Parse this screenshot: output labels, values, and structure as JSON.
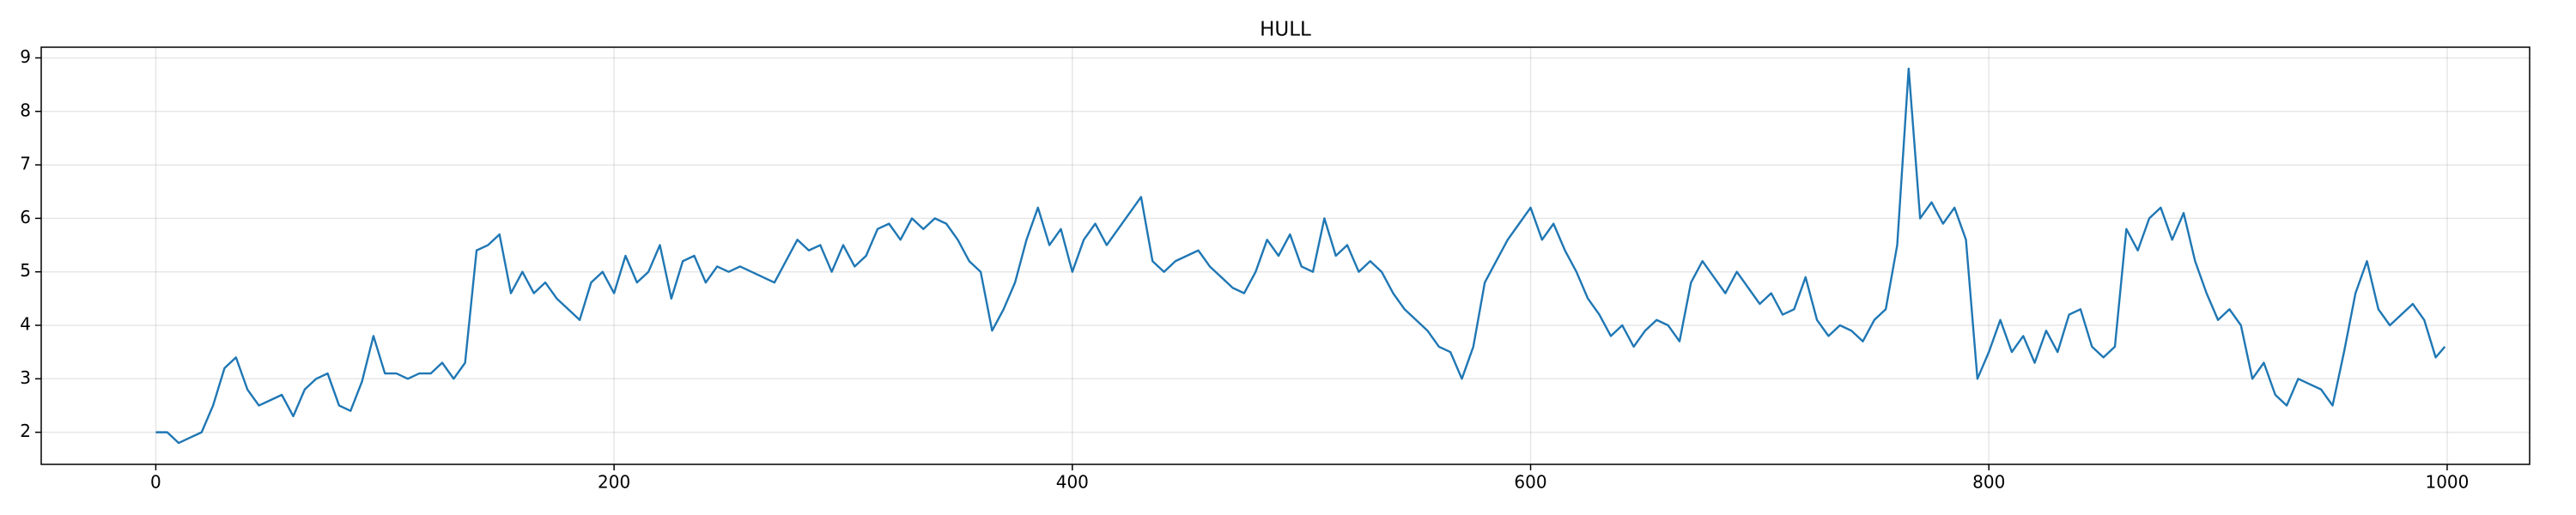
{
  "chart_data": {
    "type": "line",
    "title": "HULL",
    "x": [
      0,
      5,
      10,
      15,
      20,
      25,
      30,
      35,
      40,
      45,
      50,
      55,
      60,
      65,
      70,
      75,
      80,
      85,
      90,
      95,
      100,
      105,
      110,
      115,
      120,
      125,
      130,
      135,
      140,
      145,
      150,
      155,
      160,
      165,
      170,
      175,
      180,
      185,
      190,
      195,
      200,
      205,
      210,
      215,
      220,
      225,
      230,
      235,
      240,
      245,
      250,
      255,
      260,
      265,
      270,
      275,
      280,
      285,
      290,
      295,
      300,
      305,
      310,
      315,
      320,
      325,
      330,
      335,
      340,
      345,
      350,
      355,
      360,
      365,
      370,
      375,
      380,
      385,
      390,
      395,
      400,
      405,
      410,
      415,
      420,
      425,
      430,
      435,
      440,
      445,
      450,
      455,
      460,
      465,
      470,
      475,
      480,
      485,
      490,
      495,
      500,
      505,
      510,
      515,
      520,
      525,
      530,
      535,
      540,
      545,
      550,
      555,
      560,
      565,
      570,
      575,
      580,
      585,
      590,
      595,
      600,
      605,
      610,
      615,
      620,
      625,
      630,
      635,
      640,
      645,
      650,
      655,
      660,
      665,
      670,
      675,
      680,
      685,
      690,
      695,
      700,
      705,
      710,
      715,
      720,
      725,
      730,
      735,
      740,
      745,
      750,
      755,
      760,
      765,
      770,
      775,
      780,
      785,
      790,
      795,
      800,
      805,
      810,
      815,
      820,
      825,
      830,
      835,
      840,
      845,
      850,
      855,
      860,
      865,
      870,
      875,
      880,
      885,
      890,
      895,
      900,
      905,
      910,
      915,
      920,
      925,
      930,
      935,
      940,
      945,
      950,
      955,
      960,
      965,
      970,
      975,
      980,
      985,
      990,
      995,
      999
    ],
    "values": [
      2.0,
      2.0,
      1.8,
      1.9,
      2.0,
      2.5,
      3.2,
      3.4,
      2.8,
      2.5,
      2.6,
      2.7,
      2.3,
      2.8,
      3.0,
      3.1,
      2.5,
      2.4,
      2.95,
      3.8,
      3.1,
      3.1,
      3.0,
      3.1,
      3.1,
      3.3,
      3.0,
      3.3,
      5.4,
      5.5,
      5.7,
      4.6,
      5.0,
      4.6,
      4.8,
      4.5,
      4.3,
      4.1,
      4.8,
      5.0,
      4.6,
      5.3,
      4.8,
      5.0,
      5.5,
      4.5,
      5.2,
      5.3,
      4.8,
      5.1,
      5.0,
      5.1,
      5.0,
      4.9,
      4.8,
      5.2,
      5.6,
      5.4,
      5.5,
      5.0,
      5.5,
      5.1,
      5.3,
      5.8,
      5.9,
      5.6,
      6.0,
      5.8,
      6.0,
      5.9,
      5.6,
      5.2,
      5.0,
      3.9,
      4.3,
      4.8,
      5.6,
      6.2,
      5.5,
      5.8,
      5.0,
      5.6,
      5.9,
      5.5,
      5.8,
      6.1,
      6.4,
      5.2,
      5.0,
      5.2,
      5.3,
      5.4,
      5.1,
      4.9,
      4.7,
      4.6,
      5.0,
      5.6,
      5.3,
      5.7,
      5.1,
      5.0,
      6.0,
      5.3,
      5.5,
      5.0,
      5.2,
      5.0,
      4.6,
      4.3,
      4.1,
      3.9,
      3.6,
      3.5,
      3.0,
      3.6,
      4.8,
      5.2,
      5.6,
      5.9,
      6.2,
      5.6,
      5.9,
      5.4,
      5.0,
      4.5,
      4.2,
      3.8,
      4.0,
      3.6,
      3.9,
      4.1,
      4.0,
      3.7,
      4.8,
      5.2,
      4.9,
      4.6,
      5.0,
      4.7,
      4.4,
      4.6,
      4.2,
      4.3,
      4.9,
      4.1,
      3.8,
      4.0,
      3.9,
      3.7,
      4.1,
      4.3,
      5.5,
      8.8,
      6.0,
      6.3,
      5.9,
      6.2,
      5.6,
      3.0,
      3.5,
      4.1,
      3.5,
      3.8,
      3.3,
      3.9,
      3.5,
      4.2,
      4.3,
      3.6,
      3.4,
      3.6,
      5.8,
      5.4,
      6.0,
      6.2,
      5.6,
      6.1,
      5.2,
      4.6,
      4.1,
      4.3,
      4.0,
      3.0,
      3.3,
      2.7,
      2.5,
      3.0,
      2.9,
      2.8,
      2.5,
      3.5,
      4.6,
      5.2,
      4.3,
      4.0,
      4.2,
      4.4,
      4.1,
      3.4,
      3.6
    ],
    "color": "#1f77b4",
    "xlim": [
      -50,
      1036
    ],
    "xticks": [
      0,
      200,
      400,
      600,
      800,
      1000
    ],
    "ylim": [
      1.4,
      9.2
    ],
    "yticks": [
      2,
      3,
      4,
      5,
      6,
      7,
      8,
      9
    ],
    "grid": true
  }
}
